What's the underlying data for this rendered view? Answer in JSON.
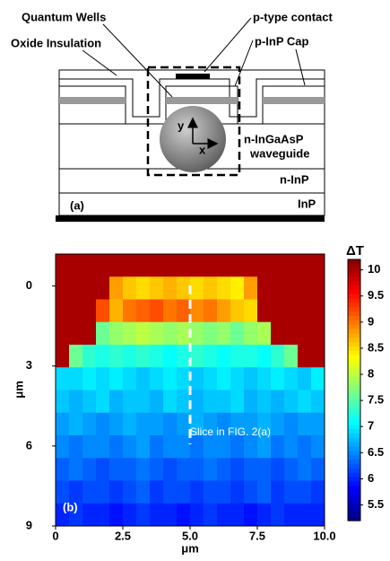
{
  "diagram": {
    "labels": {
      "quantum_wells": "Quantum Wells",
      "p_contact": "p-type contact",
      "oxide": "Oxide Insulation",
      "cap": "p-InP Cap",
      "waveguide_1": "n-InGaAsP",
      "waveguide_2": "waveguide",
      "n_inp": "n-InP",
      "inp": "InP",
      "axis_y": "y",
      "axis_x": "x"
    },
    "panel_label": "(a)"
  },
  "chart_data": {
    "type": "heatmap",
    "panel_label": "(b)",
    "annotation": "Slice in FIG. 2(a)",
    "xlabel": "μm",
    "ylabel": "μm",
    "colorbar_title": "ΔT",
    "colormap": "jet",
    "xlim": [
      0,
      10
    ],
    "xticks": [
      0,
      2.5,
      {
        "value": 5,
        "label": "5.0"
      },
      7.5,
      {
        "value": 10,
        "label": "10.0"
      }
    ],
    "ylim": [
      -1.2,
      9
    ],
    "yticks": [
      0,
      3,
      6,
      9
    ],
    "clim": [
      5.2,
      10.2
    ],
    "cticks": [
      5.5,
      6,
      6.5,
      7,
      7.5,
      8,
      8.5,
      9,
      9.5,
      10
    ],
    "z": [
      [
        10,
        10,
        10,
        10,
        10,
        10,
        10,
        10,
        10,
        10,
        10,
        10,
        10,
        10,
        10,
        10,
        10,
        10,
        10,
        10
      ],
      [
        10,
        10,
        10,
        10,
        8.8,
        8.6,
        8.5,
        8.6,
        8.7,
        8.6,
        8.5,
        8.6,
        8.5,
        8.4,
        8.8,
        10,
        10,
        10,
        10,
        10
      ],
      [
        10,
        10,
        10,
        9.2,
        8.7,
        9.0,
        9.1,
        9.2,
        9.0,
        9.1,
        8.9,
        9.0,
        8.8,
        8.6,
        8.5,
        10,
        10,
        10,
        10,
        10
      ],
      [
        10,
        10,
        10,
        7.6,
        7.8,
        7.9,
        8.0,
        7.9,
        7.8,
        7.9,
        7.8,
        7.7,
        7.8,
        7.6,
        7.8,
        7.9,
        10,
        10,
        10,
        10
      ],
      [
        10,
        7.6,
        7.3,
        7.2,
        7.3,
        7.2,
        7.3,
        7.2,
        7.1,
        7.2,
        7.3,
        7.2,
        7.1,
        7.2,
        7.2,
        7.1,
        7.3,
        7.6,
        10,
        10
      ],
      [
        6.9,
        6.9,
        7.0,
        6.9,
        7.0,
        6.9,
        6.8,
        6.9,
        7.0,
        6.9,
        6.8,
        6.9,
        7.0,
        6.9,
        6.8,
        6.9,
        7.0,
        6.9,
        6.8,
        7.0
      ],
      [
        6.8,
        6.7,
        6.8,
        6.9,
        6.7,
        6.8,
        6.8,
        6.7,
        6.9,
        6.8,
        6.7,
        6.8,
        6.8,
        6.9,
        6.7,
        6.8,
        6.7,
        6.8,
        6.9,
        6.8
      ],
      [
        6.6,
        6.7,
        6.6,
        6.5,
        6.6,
        6.7,
        6.6,
        6.6,
        6.5,
        6.6,
        6.7,
        6.6,
        6.5,
        6.6,
        6.6,
        6.7,
        6.6,
        6.5,
        6.6,
        6.6
      ],
      [
        6.5,
        6.4,
        6.5,
        6.5,
        6.4,
        6.5,
        6.6,
        6.4,
        6.5,
        6.5,
        6.4,
        6.5,
        6.5,
        6.4,
        6.5,
        6.6,
        6.4,
        6.5,
        6.4,
        6.5
      ],
      [
        6.3,
        6.4,
        6.3,
        6.2,
        6.3,
        6.3,
        6.4,
        6.3,
        6.2,
        6.3,
        6.3,
        6.4,
        6.3,
        6.2,
        6.3,
        6.3,
        6.2,
        6.3,
        6.4,
        6.3
      ],
      [
        6.2,
        6.1,
        6.2,
        6.2,
        6.1,
        6.2,
        6.3,
        6.1,
        6.2,
        6.2,
        6.1,
        6.2,
        6.2,
        6.1,
        6.2,
        6.3,
        6.1,
        6.2,
        6.2,
        6.1
      ],
      [
        6.0,
        6.1,
        6.0,
        6.0,
        5.9,
        6.0,
        6.1,
        6.0,
        6.0,
        5.9,
        6.0,
        6.1,
        6.0,
        6.0,
        5.9,
        6.0,
        6.1,
        6.0,
        6.0,
        6.0
      ]
    ]
  }
}
